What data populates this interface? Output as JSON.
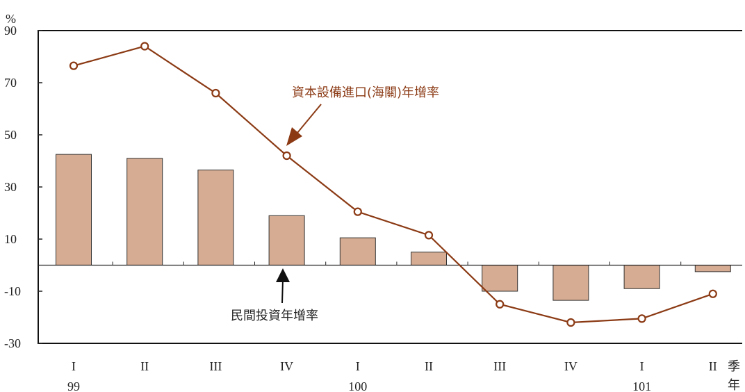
{
  "chart_data": {
    "type": "bar",
    "y_unit": "%",
    "ylim": [
      -30,
      90
    ],
    "y_ticks": [
      "90",
      "70",
      "50",
      "30",
      "10",
      "-10",
      "-30"
    ],
    "x_axis_label_quarter": "季",
    "x_axis_label_year": "年",
    "categories": [
      "I",
      "II",
      "III",
      "IV",
      "I",
      "II",
      "III",
      "IV",
      "I",
      "II"
    ],
    "year_labels": [
      {
        "index": 0,
        "text": "99"
      },
      {
        "index": 4,
        "text": "100"
      },
      {
        "index": 8,
        "text": "101"
      }
    ],
    "series": [
      {
        "name": "民間投資年增率",
        "kind": "bar",
        "values": [
          42.5,
          41,
          36.5,
          19,
          10.5,
          5,
          -10,
          -13.5,
          -9,
          -2.5
        ]
      },
      {
        "name": "資本設備進口(海關)年增率",
        "kind": "line",
        "values": [
          76.5,
          84,
          66,
          42,
          20.5,
          11.5,
          -15,
          -22,
          -20.5,
          -11
        ]
      }
    ],
    "colors": {
      "bar_fill": "#d6ac92",
      "line": "#8b3a14",
      "axis": "#111111"
    },
    "grid": false
  }
}
